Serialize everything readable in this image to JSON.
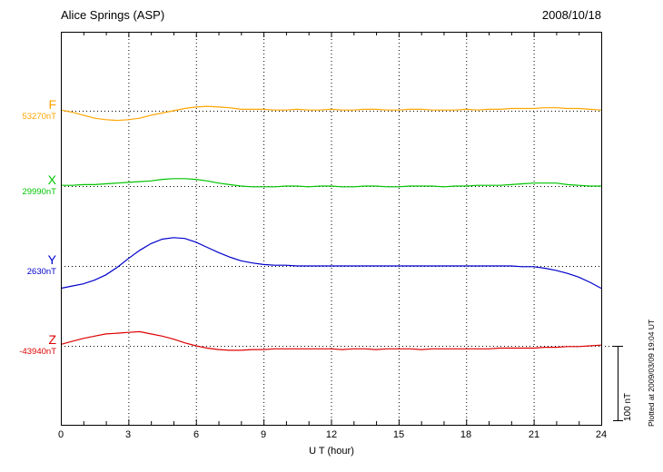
{
  "header": {
    "title": "Alice Springs (ASP)",
    "date": "2008/10/18"
  },
  "axis": {
    "xlabel": "U T (hour)",
    "ticks": [
      "0",
      "3",
      "6",
      "9",
      "12",
      "15",
      "18",
      "21",
      "24"
    ]
  },
  "scalebar": {
    "label": "100 nT",
    "span_nT": 100
  },
  "plotted_note": "Plotted at 2009/03/09 19:04 UT",
  "colors": {
    "background": "#ffffff",
    "frame": "#000000"
  },
  "chart_data": {
    "type": "line",
    "title": "Alice Springs (ASP) magnetogram 2008/10/18",
    "xlabel": "U T (hour)",
    "x_range": [
      0,
      24
    ],
    "x_tick_step": 3,
    "grid": "dotted vertical every 3 h, dotted horizontal baseline per trace",
    "scale_bar_nT": 100,
    "x_hours": [
      0,
      0.5,
      1,
      1.5,
      2,
      2.5,
      3,
      3.5,
      4,
      4.5,
      5,
      5.5,
      6,
      6.5,
      7,
      7.5,
      8,
      8.5,
      9,
      9.5,
      10,
      10.5,
      11,
      11.5,
      12,
      12.5,
      13,
      13.5,
      14,
      14.5,
      15,
      15.5,
      16,
      16.5,
      17,
      17.5,
      18,
      18.5,
      19,
      19.5,
      20,
      20.5,
      21,
      21.5,
      22,
      22.5,
      23,
      23.5,
      24
    ],
    "series": [
      {
        "name": "F",
        "baseline_label": "53270nT",
        "baseline_value_nT": 53270,
        "color": "#FFA500",
        "offsets_nT": [
          1,
          -2,
          -6,
          -10,
          -12,
          -13,
          -12,
          -10,
          -6,
          -3,
          0,
          3,
          5,
          6,
          5,
          4,
          2,
          2,
          2,
          1,
          1,
          2,
          1,
          1,
          2,
          1,
          1,
          2,
          2,
          1,
          1,
          2,
          2,
          1,
          1,
          1,
          2,
          1,
          2,
          2,
          3,
          3,
          3,
          4,
          4,
          3,
          3,
          2,
          1
        ]
      },
      {
        "name": "X",
        "baseline_label": "29990nT",
        "baseline_value_nT": 29990,
        "color": "#00C400",
        "offsets_nT": [
          1,
          1,
          2,
          2,
          3,
          4,
          5,
          6,
          7,
          9,
          10,
          10,
          9,
          7,
          4,
          2,
          0,
          -1,
          -1,
          -1,
          0,
          0,
          -1,
          0,
          0,
          -1,
          -1,
          0,
          0,
          -1,
          -1,
          0,
          0,
          0,
          -1,
          0,
          0,
          1,
          1,
          1,
          2,
          3,
          4,
          4,
          4,
          2,
          1,
          0,
          0
        ]
      },
      {
        "name": "Y",
        "baseline_label": "2630nT",
        "baseline_value_nT": 2630,
        "color": "#0000CC",
        "offsets_nT": [
          -30,
          -27,
          -24,
          -19,
          -12,
          -2,
          10,
          21,
          30,
          36,
          38,
          37,
          32,
          25,
          18,
          12,
          7,
          4,
          2,
          1,
          1,
          0,
          0,
          0,
          0,
          0,
          0,
          0,
          0,
          0,
          0,
          0,
          0,
          0,
          0,
          0,
          0,
          0,
          0,
          0,
          0,
          -1,
          -1,
          -3,
          -6,
          -10,
          -15,
          -22,
          -30
        ]
      },
      {
        "name": "Z",
        "baseline_label": "-43940nT",
        "baseline_value_nT": -43940,
        "color": "#DD0000",
        "offsets_nT": [
          2,
          6,
          10,
          13,
          16,
          17,
          18,
          19,
          16,
          13,
          9,
          4,
          0,
          -3,
          -5,
          -6,
          -6,
          -5,
          -5,
          -4,
          -4,
          -4,
          -4,
          -4,
          -4,
          -5,
          -4,
          -4,
          -5,
          -4,
          -4,
          -4,
          -5,
          -4,
          -4,
          -4,
          -4,
          -4,
          -4,
          -3,
          -3,
          -3,
          -3,
          -2,
          -2,
          -1,
          -1,
          0,
          1
        ]
      }
    ]
  }
}
